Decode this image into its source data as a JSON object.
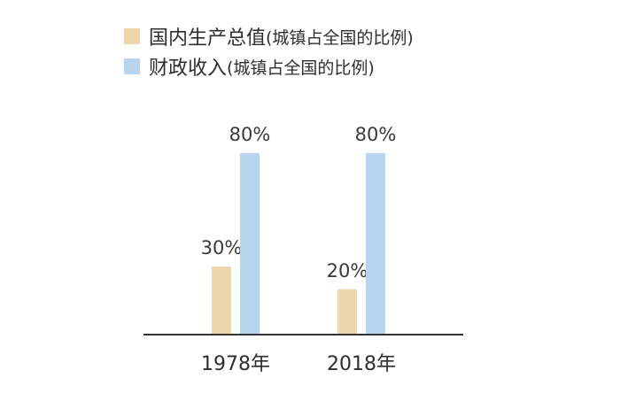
{
  "chart_data": {
    "type": "bar",
    "categories": [
      "1978年",
      "2018年"
    ],
    "series": [
      {
        "name": "国内生产总值",
        "name_suffix": "(城镇占全国的比例)",
        "color": "#edd6ab",
        "values": [
          30,
          20
        ],
        "labels": [
          "30%",
          "20%"
        ]
      },
      {
        "name": "财政收入",
        "name_suffix": "(城镇占全国的比例)",
        "color": "#b8d5f0",
        "values": [
          80,
          80
        ],
        "labels": [
          "80%",
          "80%"
        ]
      }
    ],
    "ylim": [
      0,
      100
    ],
    "grid": false,
    "legend_position": "top-left",
    "axis_color": "#333333"
  }
}
